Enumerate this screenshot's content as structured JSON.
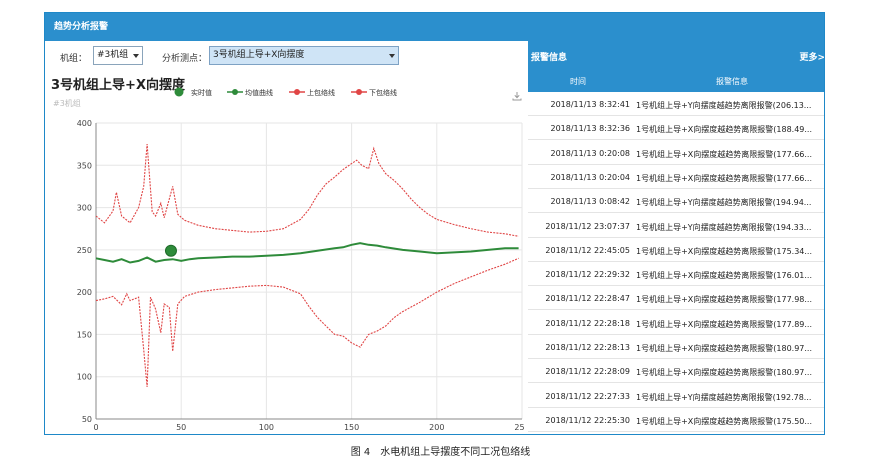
{
  "app": {
    "title": "趋势分析报警"
  },
  "controls": {
    "unit_label": "机组：",
    "unit_value": "#3机组",
    "point_label": "分析测点：",
    "point_value": "3号机组上导+X向摆度"
  },
  "chart": {
    "title": "3号机组上导+X向摆度",
    "subtitle": "#3机组",
    "legend": [
      {
        "name": "实时值",
        "color": "#2e8b3a"
      },
      {
        "name": "均值曲线",
        "color": "#2e8b3a"
      },
      {
        "name": "上包络线",
        "color": "#e04545"
      },
      {
        "name": "下包络线",
        "color": "#e04545"
      }
    ]
  },
  "chart_data": {
    "type": "line",
    "title": "3号机组上导+X向摆度",
    "xlabel": "",
    "ylabel": "",
    "xlim": [
      0,
      250
    ],
    "ylim": [
      50,
      400
    ],
    "x_ticks": [
      0,
      50,
      100,
      150,
      200,
      250
    ],
    "y_ticks": [
      50,
      100,
      150,
      200,
      250,
      300,
      350,
      400
    ],
    "grid": true,
    "legend_position": "top",
    "realtime_point": {
      "x": 44,
      "y": 249
    },
    "series": [
      {
        "name": "均值曲线",
        "color": "#2e8b3a",
        "points": [
          [
            0,
            240
          ],
          [
            5,
            238
          ],
          [
            10,
            236
          ],
          [
            15,
            239
          ],
          [
            20,
            235
          ],
          [
            25,
            237
          ],
          [
            30,
            241
          ],
          [
            35,
            236
          ],
          [
            40,
            238
          ],
          [
            45,
            239
          ],
          [
            50,
            237
          ],
          [
            55,
            239
          ],
          [
            60,
            240
          ],
          [
            70,
            241
          ],
          [
            80,
            242
          ],
          [
            90,
            242
          ],
          [
            100,
            243
          ],
          [
            110,
            244
          ],
          [
            120,
            246
          ],
          [
            130,
            249
          ],
          [
            140,
            252
          ],
          [
            145,
            253
          ],
          [
            150,
            256
          ],
          [
            155,
            258
          ],
          [
            160,
            256
          ],
          [
            165,
            255
          ],
          [
            170,
            253
          ],
          [
            180,
            250
          ],
          [
            190,
            248
          ],
          [
            200,
            246
          ],
          [
            210,
            247
          ],
          [
            220,
            248
          ],
          [
            230,
            250
          ],
          [
            240,
            252
          ],
          [
            248,
            252
          ]
        ]
      },
      {
        "name": "上包络线",
        "color": "#e04545",
        "points": [
          [
            0,
            290
          ],
          [
            5,
            282
          ],
          [
            10,
            296
          ],
          [
            12,
            318
          ],
          [
            15,
            290
          ],
          [
            20,
            282
          ],
          [
            25,
            300
          ],
          [
            28,
            325
          ],
          [
            30,
            375
          ],
          [
            33,
            295
          ],
          [
            35,
            290
          ],
          [
            38,
            305
          ],
          [
            40,
            288
          ],
          [
            45,
            325
          ],
          [
            48,
            292
          ],
          [
            52,
            285
          ],
          [
            60,
            279
          ],
          [
            70,
            275
          ],
          [
            80,
            273
          ],
          [
            90,
            271
          ],
          [
            100,
            272
          ],
          [
            110,
            275
          ],
          [
            120,
            286
          ],
          [
            125,
            298
          ],
          [
            130,
            315
          ],
          [
            135,
            328
          ],
          [
            140,
            336
          ],
          [
            145,
            345
          ],
          [
            150,
            352
          ],
          [
            153,
            356
          ],
          [
            156,
            350
          ],
          [
            160,
            346
          ],
          [
            163,
            370
          ],
          [
            166,
            352
          ],
          [
            170,
            340
          ],
          [
            175,
            332
          ],
          [
            180,
            322
          ],
          [
            185,
            310
          ],
          [
            190,
            300
          ],
          [
            195,
            292
          ],
          [
            200,
            286
          ],
          [
            210,
            280
          ],
          [
            220,
            275
          ],
          [
            230,
            271
          ],
          [
            240,
            269
          ],
          [
            248,
            266
          ]
        ]
      },
      {
        "name": "下包络线",
        "color": "#e04545",
        "points": [
          [
            0,
            190
          ],
          [
            5,
            192
          ],
          [
            10,
            195
          ],
          [
            15,
            185
          ],
          [
            18,
            198
          ],
          [
            20,
            190
          ],
          [
            25,
            194
          ],
          [
            28,
            132
          ],
          [
            30,
            88
          ],
          [
            32,
            194
          ],
          [
            35,
            180
          ],
          [
            38,
            152
          ],
          [
            40,
            186
          ],
          [
            43,
            182
          ],
          [
            45,
            130
          ],
          [
            48,
            186
          ],
          [
            52,
            195
          ],
          [
            60,
            200
          ],
          [
            70,
            203
          ],
          [
            80,
            205
          ],
          [
            90,
            207
          ],
          [
            100,
            208
          ],
          [
            110,
            206
          ],
          [
            120,
            198
          ],
          [
            125,
            183
          ],
          [
            130,
            170
          ],
          [
            135,
            160
          ],
          [
            140,
            150
          ],
          [
            145,
            148
          ],
          [
            150,
            140
          ],
          [
            155,
            135
          ],
          [
            160,
            150
          ],
          [
            165,
            154
          ],
          [
            170,
            160
          ],
          [
            175,
            170
          ],
          [
            180,
            177
          ],
          [
            190,
            188
          ],
          [
            200,
            200
          ],
          [
            210,
            210
          ],
          [
            220,
            218
          ],
          [
            230,
            226
          ],
          [
            240,
            233
          ],
          [
            248,
            240
          ]
        ]
      }
    ]
  },
  "alarms": {
    "title": "报警信息",
    "more_label": "更多>",
    "col_time": "时间",
    "col_info": "报警信息",
    "rows": [
      {
        "time": "2018/11/13 8:32:41",
        "info": "1号机组上导+Y向摆度越趋势离限报警(206.13..."
      },
      {
        "time": "2018/11/13 8:32:36",
        "info": "1号机组上导+X向摆度越趋势离限报警(188.49..."
      },
      {
        "time": "2018/11/13 0:20:08",
        "info": "1号机组上导+X向摆度越趋势离限报警(177.66..."
      },
      {
        "time": "2018/11/13 0:20:04",
        "info": "1号机组上导+X向摆度越趋势离限报警(177.66..."
      },
      {
        "time": "2018/11/13 0:08:42",
        "info": "1号机组上导+Y向摆度越趋势离限报警(194.94..."
      },
      {
        "time": "2018/11/12 23:07:37",
        "info": "1号机组上导+Y向摆度越趋势离限报警(194.33..."
      },
      {
        "time": "2018/11/12 22:45:05",
        "info": "1号机组上导+X向摆度越趋势离限报警(175.34..."
      },
      {
        "time": "2018/11/12 22:29:32",
        "info": "1号机组上导+X向摆度越趋势离限报警(176.01..."
      },
      {
        "time": "2018/11/12 22:28:47",
        "info": "1号机组上导+X向摆度越趋势离限报警(177.98..."
      },
      {
        "time": "2018/11/12 22:28:18",
        "info": "1号机组上导+X向摆度越趋势离限报警(177.89..."
      },
      {
        "time": "2018/11/12 22:28:13",
        "info": "1号机组上导+X向摆度越趋势离限报警(180.97..."
      },
      {
        "time": "2018/11/12 22:28:09",
        "info": "1号机组上导+X向摆度越趋势离限报警(180.97..."
      },
      {
        "time": "2018/11/12 22:27:33",
        "info": "1号机组上导+Y向摆度越趋势离限报警(192.78..."
      },
      {
        "time": "2018/11/12 22:25:30",
        "info": "1号机组上导+X向摆度越趋势离限报警(175.50..."
      }
    ]
  },
  "caption": "图 4　水电机组上导摆度不同工况包络线"
}
